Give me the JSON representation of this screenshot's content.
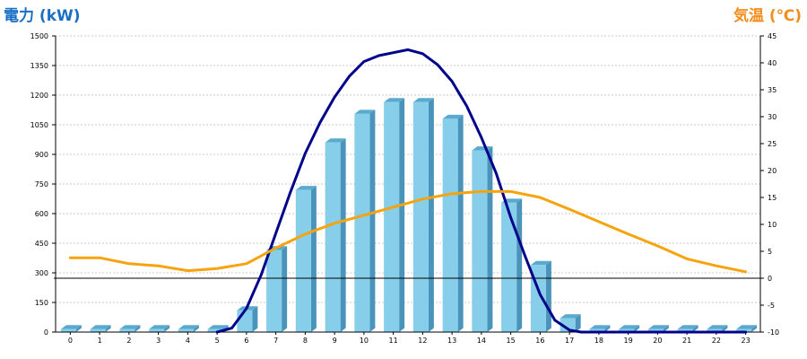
{
  "chart_data": {
    "type": "bar",
    "title": "",
    "xlabel": "",
    "ylabel_left": "電力 (kW)",
    "ylabel_right": "気温 (℃)",
    "categories": [
      "0",
      "1",
      "2",
      "3",
      "4",
      "5",
      "6",
      "7",
      "8",
      "9",
      "10",
      "11",
      "12",
      "13",
      "14",
      "15",
      "16",
      "17",
      "18",
      "19",
      "20",
      "21",
      "22",
      "23"
    ],
    "left_axis": {
      "min": 0,
      "max": 1500,
      "ticks": [
        "0",
        "150",
        "300",
        "450",
        "600",
        "750",
        "900",
        "1050",
        "1200",
        "1350",
        "1500"
      ]
    },
    "right_axis": {
      "min": -10,
      "max": 45,
      "ticks": [
        "-10",
        "-5",
        "0",
        "5",
        "10",
        "15",
        "20",
        "25",
        "30",
        "35",
        "40",
        "45"
      ],
      "zero_line": true
    },
    "grid": true,
    "series": [
      {
        "type": "bar",
        "axis": "left",
        "color": "#87ceeb",
        "values": [
          15,
          15,
          15,
          15,
          15,
          15,
          110,
          415,
          720,
          960,
          1105,
          1165,
          1165,
          1080,
          920,
          655,
          340,
          70,
          15,
          15,
          15,
          15,
          15,
          15
        ]
      },
      {
        "type": "line",
        "axis": "left",
        "color": "#00008b",
        "x": [
          5,
          5.5,
          6,
          6.5,
          7,
          7.5,
          8,
          8.5,
          9,
          9.5,
          10,
          10.5,
          11,
          11.5,
          12,
          12.5,
          13,
          13.5,
          14,
          14.5,
          15,
          15.5,
          16,
          16.5,
          17,
          17.4,
          18,
          23
        ],
        "values": [
          0,
          20,
          120,
          290,
          500,
          710,
          905,
          1060,
          1190,
          1295,
          1370,
          1400,
          1415,
          1430,
          1410,
          1355,
          1270,
          1145,
          985,
          805,
          580,
          380,
          190,
          60,
          10,
          0,
          0,
          0
        ]
      },
      {
        "type": "line",
        "axis": "right",
        "color": "#f5a30e",
        "values": [
          3.8,
          3.8,
          2.7,
          2.3,
          1.4,
          1.8,
          2.7,
          5.6,
          8.2,
          10.2,
          11.7,
          13.2,
          14.7,
          15.7,
          16.1,
          16.1,
          15.0,
          12.8,
          10.5,
          8.2,
          6.0,
          3.6,
          2.3,
          1.2
        ]
      }
    ]
  }
}
